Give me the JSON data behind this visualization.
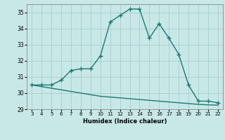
{
  "x": [
    3,
    4,
    5,
    6,
    7,
    8,
    9,
    10,
    11,
    12,
    13,
    14,
    15,
    16,
    17,
    18,
    19,
    20,
    21,
    22
  ],
  "y_main": [
    30.5,
    30.5,
    30.5,
    30.8,
    31.4,
    31.5,
    31.5,
    32.3,
    34.4,
    34.8,
    35.2,
    35.2,
    33.4,
    34.3,
    33.4,
    32.4,
    30.5,
    29.5,
    29.5,
    29.4
  ],
  "y_lower": [
    30.5,
    30.4,
    30.3,
    30.2,
    30.1,
    30.0,
    29.9,
    29.8,
    29.75,
    29.7,
    29.65,
    29.6,
    29.55,
    29.5,
    29.45,
    29.4,
    29.35,
    29.3,
    29.27,
    29.25
  ],
  "line_color": "#1a7a6e",
  "bg_color": "#c8e8e8",
  "grid_color": "#a8cccc",
  "xlabel": "Humidex (Indice chaleur)",
  "ylim": [
    29.0,
    35.5
  ],
  "xlim": [
    2.5,
    22.5
  ],
  "yticks": [
    29,
    30,
    31,
    32,
    33,
    34,
    35
  ],
  "xticks": [
    3,
    4,
    5,
    6,
    7,
    8,
    9,
    10,
    11,
    12,
    13,
    14,
    15,
    16,
    17,
    18,
    19,
    20,
    21,
    22
  ],
  "marker": "+",
  "markersize": 4,
  "linewidth": 1.0
}
